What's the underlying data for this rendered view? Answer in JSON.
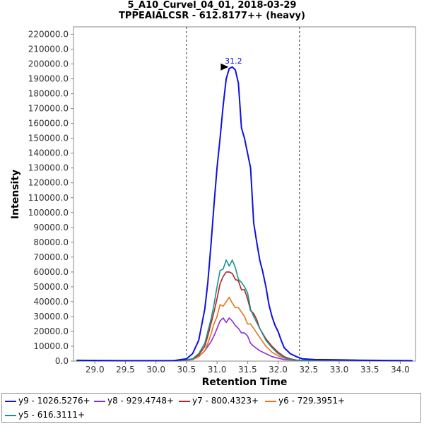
{
  "chart_data": {
    "type": "line",
    "title": "5_A10_Curvel_04_01, 2018-03-29",
    "subtitle": "TPPEAIALCSR - 612.8177++ (heavy)",
    "xlabel": "Retention Time",
    "ylabel": "Intensity",
    "xlim": [
      28.65,
      34.25
    ],
    "ylim": [
      0,
      225000
    ],
    "x_ticks": [
      "29.0",
      "29.5",
      "30.0",
      "30.5",
      "31.0",
      "31.5",
      "32.0",
      "32.5",
      "33.0",
      "33.5",
      "34.0"
    ],
    "y_ticks": [
      "0.0",
      "10000.0",
      "20000.0",
      "30000.0",
      "40000.0",
      "50000.0",
      "60000.0",
      "70000.0",
      "80000.0",
      "90000.0",
      "100000.0",
      "110000.0",
      "120000.0",
      "130000.0",
      "140000.0",
      "150000.0",
      "160000.0",
      "170000.0",
      "180000.0",
      "190000.0",
      "200000.0",
      "210000.0",
      "220000.0"
    ],
    "grid": false,
    "legend_position": "bottom",
    "boundaries": [
      30.5,
      32.35
    ],
    "peak_annotation": {
      "x": 31.2,
      "y": 198000,
      "label": "31.2"
    },
    "series": [
      {
        "name": "y9 - 1026.5276+",
        "color": "#1010e0",
        "x": [
          28.7,
          29.5,
          30.3,
          30.5,
          30.6,
          30.7,
          30.8,
          30.85,
          30.9,
          30.95,
          31.0,
          31.05,
          31.1,
          31.15,
          31.2,
          31.25,
          31.3,
          31.35,
          31.4,
          31.45,
          31.5,
          31.55,
          31.6,
          31.65,
          31.7,
          31.75,
          31.8,
          31.85,
          31.9,
          31.95,
          32.0,
          32.05,
          32.1,
          32.2,
          32.3,
          32.4,
          32.6,
          33.0,
          33.5,
          34.2
        ],
        "y": [
          500,
          300,
          400,
          1500,
          5000,
          14000,
          35000,
          53000,
          78000,
          105000,
          130000,
          150000,
          172000,
          190000,
          197000,
          198000,
          196000,
          187000,
          157000,
          150000,
          140000,
          130000,
          93000,
          80000,
          68000,
          60000,
          50000,
          38000,
          30000,
          24000,
          20000,
          14000,
          9000,
          5000,
          3000,
          1500,
          1000,
          800,
          500,
          300
        ]
      },
      {
        "name": "y8 - 929.4748+",
        "color": "#8a2be2",
        "x": [
          28.7,
          30.4,
          30.6,
          30.7,
          30.8,
          30.9,
          30.95,
          31.0,
          31.05,
          31.1,
          31.15,
          31.2,
          31.25,
          31.3,
          31.35,
          31.4,
          31.45,
          31.5,
          31.55,
          31.6,
          31.7,
          31.8,
          31.9,
          32.0,
          32.1,
          32.3,
          34.2
        ],
        "y": [
          200,
          300,
          1000,
          3000,
          7000,
          13000,
          17000,
          22000,
          27000,
          29000,
          26000,
          29000,
          27000,
          24000,
          22000,
          19000,
          19000,
          17000,
          12000,
          10000,
          7000,
          5000,
          3000,
          2000,
          1000,
          500,
          200
        ]
      },
      {
        "name": "y7 - 800.4323+",
        "color": "#b22222",
        "x": [
          28.7,
          30.4,
          30.6,
          30.7,
          30.8,
          30.85,
          30.9,
          30.95,
          31.0,
          31.05,
          31.1,
          31.15,
          31.2,
          31.25,
          31.3,
          31.35,
          31.4,
          31.45,
          31.5,
          31.55,
          31.6,
          31.65,
          31.7,
          31.8,
          31.9,
          32.0,
          32.1,
          32.2,
          32.3,
          34.2
        ],
        "y": [
          200,
          300,
          1500,
          4000,
          10000,
          17000,
          25000,
          33000,
          42000,
          52000,
          57000,
          60000,
          60000,
          59000,
          55000,
          54000,
          48000,
          48000,
          42000,
          34000,
          32000,
          28000,
          22000,
          15000,
          10000,
          6000,
          3000,
          1500,
          700,
          200
        ]
      },
      {
        "name": "y6 - 729.3951+",
        "color": "#e8731a",
        "x": [
          28.7,
          30.4,
          30.6,
          30.7,
          30.8,
          30.85,
          30.9,
          30.95,
          31.0,
          31.05,
          31.1,
          31.15,
          31.2,
          31.25,
          31.3,
          31.35,
          31.4,
          31.45,
          31.5,
          31.55,
          31.6,
          31.7,
          31.8,
          31.9,
          32.0,
          32.1,
          32.2,
          32.3,
          34.2
        ],
        "y": [
          200,
          300,
          1000,
          3000,
          7000,
          12000,
          18000,
          25000,
          30000,
          38000,
          37000,
          40000,
          43000,
          39000,
          36000,
          36000,
          33000,
          30000,
          25000,
          25000,
          22000,
          16000,
          10000,
          6000,
          3500,
          2000,
          1000,
          500,
          200
        ]
      },
      {
        "name": "y5 - 616.3111+",
        "color": "#17918f",
        "x": [
          28.7,
          30.4,
          30.6,
          30.7,
          30.8,
          30.85,
          30.9,
          30.95,
          31.0,
          31.05,
          31.1,
          31.15,
          31.2,
          31.25,
          31.3,
          31.35,
          31.4,
          31.45,
          31.5,
          31.55,
          31.6,
          31.7,
          31.8,
          31.9,
          32.0,
          32.1,
          32.2,
          32.3,
          34.2
        ],
        "y": [
          200,
          300,
          1500,
          5000,
          12000,
          20000,
          28000,
          38000,
          50000,
          61000,
          62000,
          68000,
          64000,
          68000,
          63000,
          55000,
          53000,
          50000,
          46000,
          35000,
          30000,
          22000,
          14000,
          9000,
          5000,
          2500,
          1200,
          600,
          200
        ]
      }
    ]
  }
}
